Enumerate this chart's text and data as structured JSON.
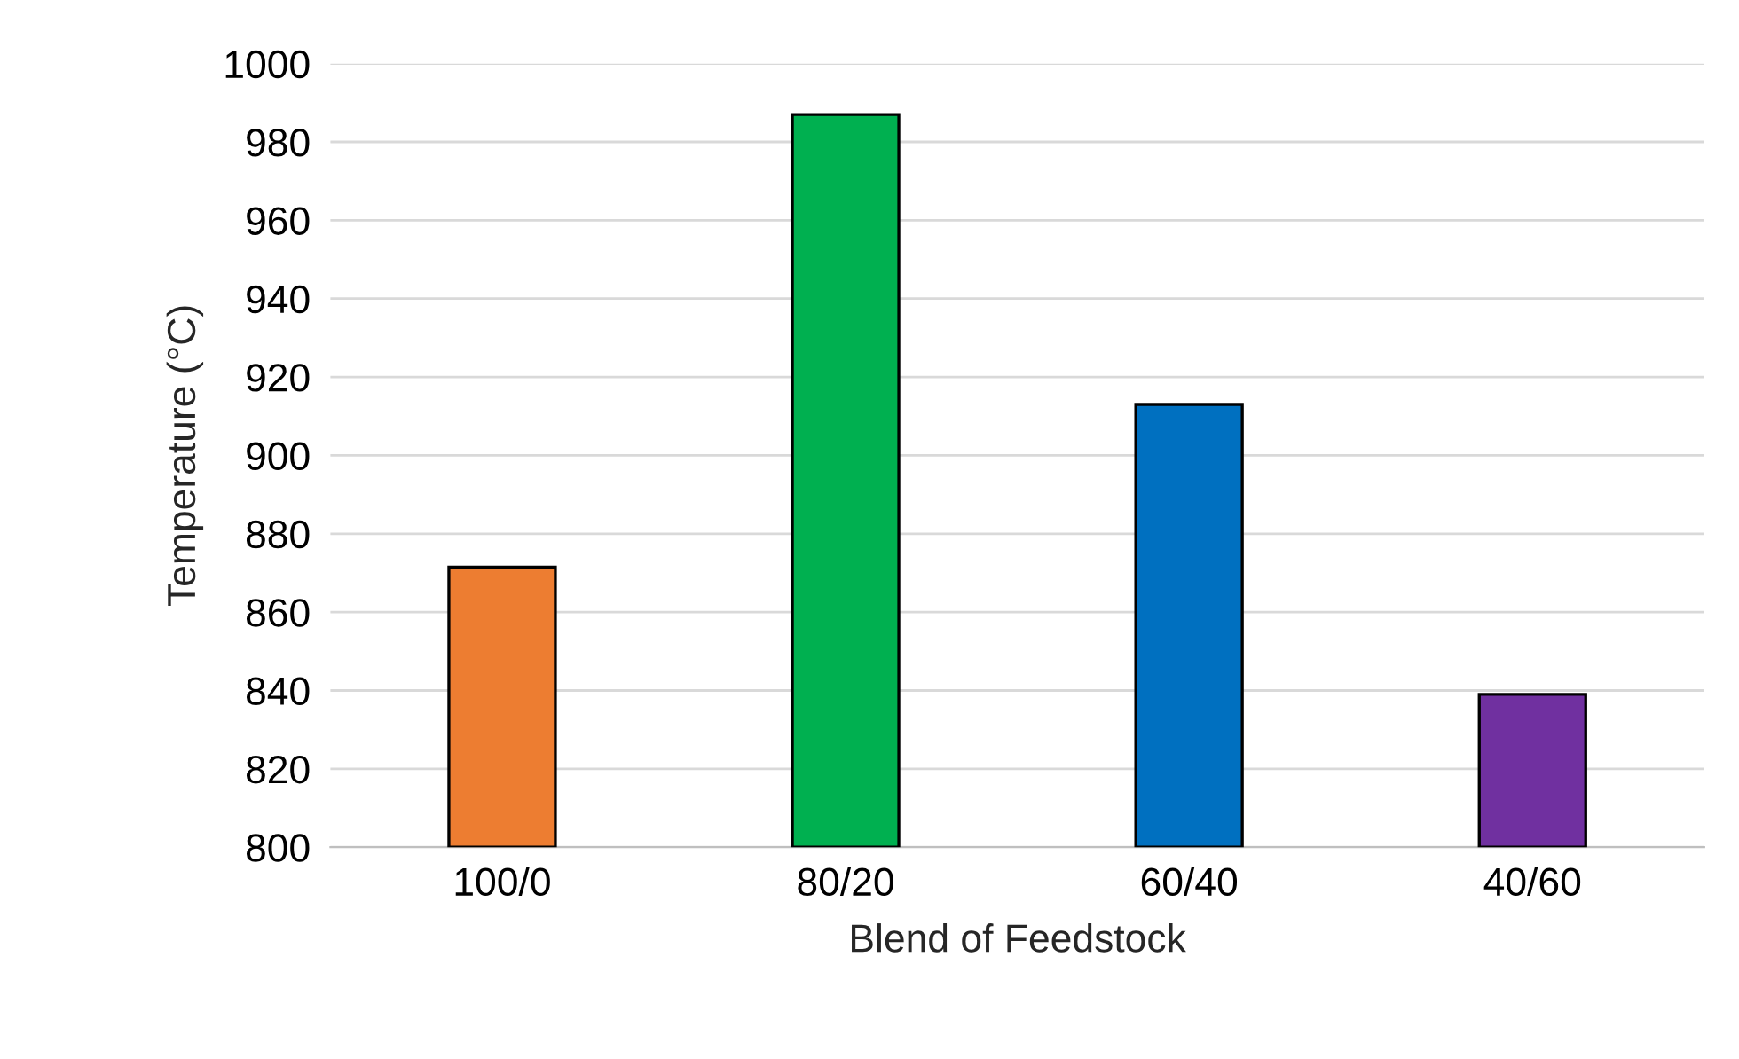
{
  "chart_data": {
    "type": "bar",
    "xlabel": "Blend of Feedstock",
    "ylabel": "Temperature (°C)",
    "categories": [
      "100/0",
      "80/20",
      "60/40",
      "40/60"
    ],
    "values": [
      871.5,
      987,
      913,
      839
    ],
    "colors": [
      "#ed7d31",
      "#00b050",
      "#0070c0",
      "#7030a0"
    ],
    "ylim": [
      800,
      1000
    ],
    "yticks": [
      800,
      820,
      840,
      860,
      880,
      900,
      920,
      940,
      960,
      980,
      1000
    ],
    "grid": "y",
    "legend": false
  }
}
